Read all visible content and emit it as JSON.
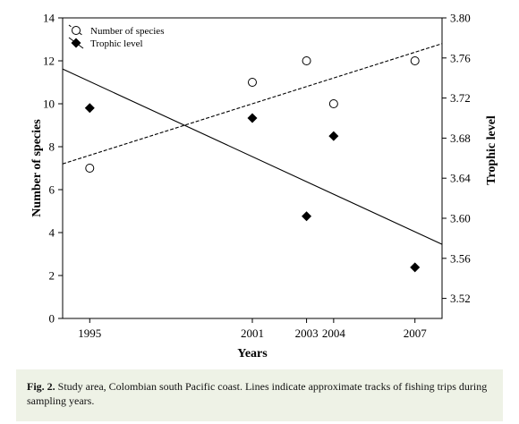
{
  "chart_data": {
    "type": "scatter",
    "xlabel": "Years",
    "ylabel_left": "Number of species",
    "ylabel_right": "Trophic level",
    "x_ticks": [
      1995,
      2001,
      2003,
      2004,
      2007
    ],
    "x_tick_labels": [
      "1995",
      "2001",
      "2003",
      "2004",
      "2007"
    ],
    "xlim": [
      1994,
      2008
    ],
    "ylim_left": [
      0,
      14
    ],
    "yticks_left": [
      0,
      2,
      4,
      6,
      8,
      10,
      12,
      14
    ],
    "ylim_right": [
      3.5,
      3.8
    ],
    "yticks_right": [
      3.52,
      3.56,
      3.6,
      3.64,
      3.68,
      3.72,
      3.76,
      3.8
    ],
    "legend_position": "top-left",
    "series": [
      {
        "name": "Number of species",
        "axis": "left",
        "marker": "open-circle",
        "x": [
          1995,
          2001,
          2003,
          2004,
          2007
        ],
        "y": [
          7,
          11,
          12,
          10,
          12
        ],
        "trend": {
          "style": "dashed",
          "x": [
            1994,
            2008
          ],
          "y": [
            7.2,
            12.8
          ]
        }
      },
      {
        "name": "Trophic level",
        "axis": "right",
        "marker": "filled-diamond",
        "x": [
          1995,
          2001,
          2003,
          2004,
          2007
        ],
        "y": [
          3.71,
          3.7,
          3.602,
          3.682,
          3.551
        ],
        "trend": {
          "style": "solid",
          "x": [
            1994,
            2008
          ],
          "y": [
            3.749,
            3.574
          ]
        }
      }
    ]
  },
  "caption": {
    "label": "Fig. 2.",
    "text": " Study area, Colombian south Pacific coast. Lines indicate approximate tracks of fishing trips during sampling years."
  }
}
